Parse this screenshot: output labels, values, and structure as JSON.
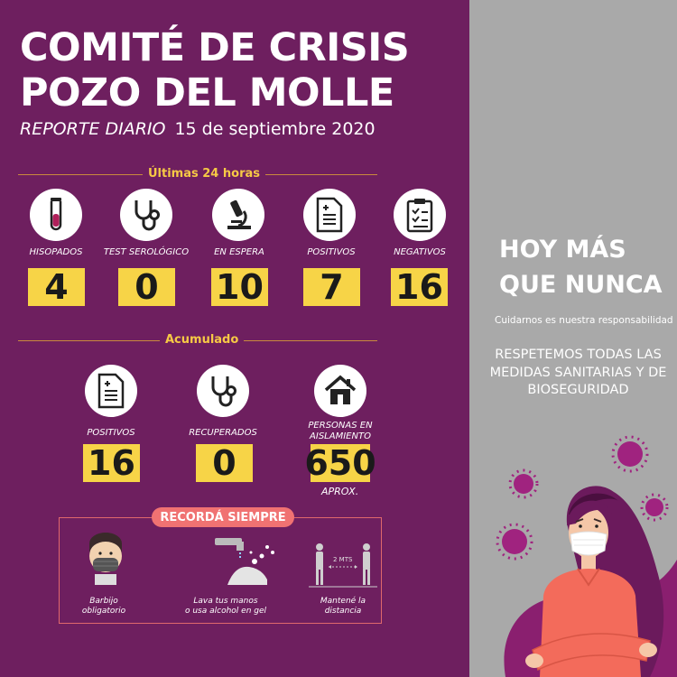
{
  "header": {
    "title_line1": "COMITÉ DE CRISIS",
    "title_line2": "POZO DEL MOLLE",
    "report_label": "REPORTE DIARIO",
    "date": "15 de septiembre 2020"
  },
  "last24": {
    "section_label": "Últimas 24 horas",
    "stats": [
      {
        "label": "HISOPADOS",
        "value": "4",
        "icon": "test-tube-icon"
      },
      {
        "label": "TEST SEROLÓGICO",
        "value": "0",
        "icon": "stethoscope-icon"
      },
      {
        "label": "EN ESPERA",
        "value": "10",
        "icon": "microscope-icon"
      },
      {
        "label": "POSITIVOS",
        "value": "7",
        "icon": "document-icon"
      },
      {
        "label": "NEGATIVOS",
        "value": "16",
        "icon": "clipboard-icon"
      }
    ]
  },
  "cumulative": {
    "section_label": "Acumulado",
    "stats": [
      {
        "label": "POSITIVOS",
        "value": "16",
        "icon": "document-icon"
      },
      {
        "label": "RECUPERADOS",
        "value": "0",
        "icon": "stethoscope-icon"
      },
      {
        "label_line1": "PERSONAS EN",
        "label_line2": "AISLAMIENTO",
        "value": "650",
        "note": "APROX.",
        "icon": "house-icon"
      }
    ]
  },
  "remember": {
    "badge": "RECORDÁ SIEMPRE",
    "tips": [
      {
        "line1": "Barbijo",
        "line2": "obligatorio",
        "icon": "mask-icon"
      },
      {
        "line1": "Lava tus manos",
        "line2": "o usa alcohol en gel",
        "icon": "hand-wash-icon"
      },
      {
        "line1": "Mantené la",
        "line2": "distancia",
        "icon": "distance-icon",
        "distance_text": "2 MTS"
      }
    ]
  },
  "side": {
    "headline_line1": "HOY MÁS",
    "headline_line2": "QUE NUNCA",
    "tagline": "Cuidarnos es nuestra responsabilidad",
    "message": "RESPETEMOS TODAS LAS MEDIDAS SANITARIAS Y DE BIOSEGURIDAD",
    "illustration": "masked-person-illustration"
  },
  "colors": {
    "purple": "#6e1f5f",
    "yellow": "#f7d447",
    "gray": "#a9a9a9",
    "coral": "#f07272"
  }
}
